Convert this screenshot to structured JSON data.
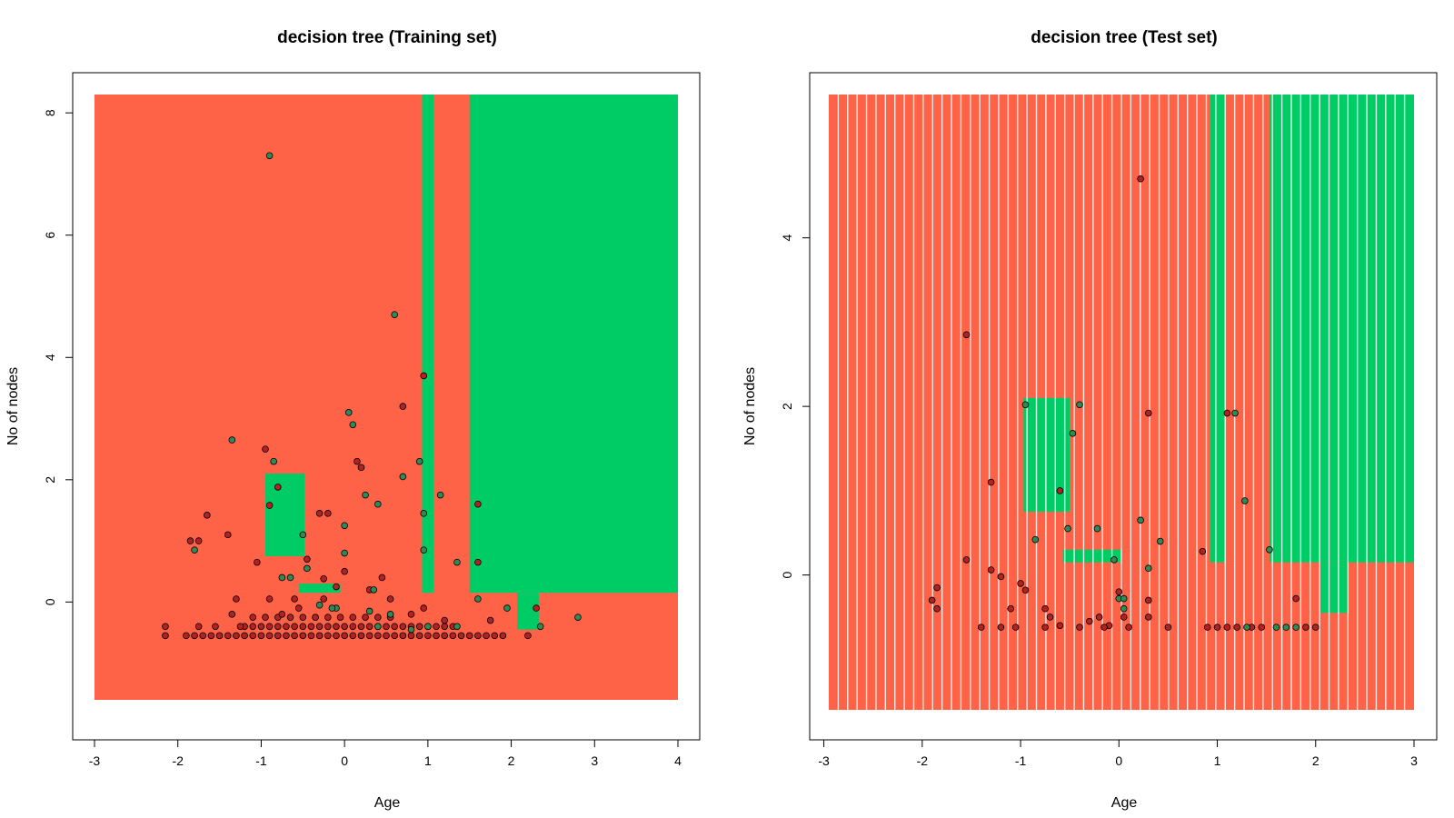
{
  "colors": {
    "class0_region": "#FF6347",
    "class1_region": "#00CC66",
    "class0_point": "#B22222",
    "class1_point": "#2E8B57",
    "point_stroke": "#000000",
    "background": "#FFFFFF"
  },
  "chart_data": [
    {
      "type": "scatter",
      "title": "decision tree (Training set)",
      "xlabel": "Age",
      "ylabel": "No of nodes",
      "xlim": [
        -3.0,
        4.0
      ],
      "ylim": [
        -1.6,
        8.3
      ],
      "xticks": [
        -3,
        -2,
        -1,
        0,
        1,
        2,
        3,
        4
      ],
      "yticks": [
        0,
        2,
        4,
        6,
        8
      ],
      "grid": false,
      "legend": "none",
      "regions": [
        {
          "class": 0,
          "x": [
            -3.0,
            4.0
          ],
          "y": [
            -1.6,
            8.3
          ]
        },
        {
          "class": 1,
          "x": [
            1.5,
            4.0
          ],
          "y": [
            0.15,
            8.3
          ]
        },
        {
          "class": 1,
          "x": [
            0.93,
            1.07
          ],
          "y": [
            0.15,
            8.3
          ]
        },
        {
          "class": 1,
          "x": [
            -0.95,
            -0.48
          ],
          "y": [
            0.75,
            2.1
          ]
        },
        {
          "class": 1,
          "x": [
            -0.55,
            -0.05
          ],
          "y": [
            0.15,
            0.3
          ]
        },
        {
          "class": 1,
          "x": [
            2.07,
            2.33
          ],
          "y": [
            -0.45,
            0.15
          ]
        }
      ],
      "series": [
        {
          "class": 0,
          "points": [
            [
              -2.15,
              -0.4
            ],
            [
              -2.15,
              -0.55
            ],
            [
              -1.85,
              1.0
            ],
            [
              -1.75,
              1.0
            ],
            [
              -1.65,
              1.42
            ],
            [
              -1.75,
              -0.4
            ],
            [
              -1.4,
              1.1
            ],
            [
              -1.35,
              -0.2
            ],
            [
              -1.3,
              0.05
            ],
            [
              -1.05,
              0.65
            ],
            [
              -0.95,
              2.5
            ],
            [
              -0.9,
              1.58
            ],
            [
              -0.8,
              1.88
            ],
            [
              -0.9,
              0.05
            ],
            [
              -0.75,
              -0.2
            ],
            [
              -0.6,
              0.05
            ],
            [
              -0.55,
              -0.1
            ],
            [
              -0.45,
              0.7
            ],
            [
              -0.3,
              1.45
            ],
            [
              -0.2,
              1.45
            ],
            [
              -0.25,
              0.38
            ],
            [
              -0.25,
              0.05
            ],
            [
              -0.1,
              0.25
            ],
            [
              0.0,
              0.5
            ],
            [
              0.15,
              2.3
            ],
            [
              0.2,
              2.2
            ],
            [
              0.3,
              0.2
            ],
            [
              0.55,
              0.05
            ],
            [
              0.7,
              3.2
            ],
            [
              0.8,
              -0.2
            ],
            [
              0.95,
              3.7
            ],
            [
              1.2,
              -0.3
            ],
            [
              1.6,
              1.6
            ],
            [
              1.6,
              0.65
            ],
            [
              1.75,
              -0.3
            ],
            [
              2.2,
              -0.55
            ],
            [
              2.3,
              -0.1
            ],
            [
              0.45,
              0.4
            ],
            [
              -0.35,
              -0.25
            ],
            [
              -1.55,
              -0.4
            ],
            [
              -1.25,
              -0.4
            ],
            [
              0.95,
              -0.1
            ]
          ]
        },
        {
          "class": 1,
          "points": [
            [
              -1.8,
              0.85
            ],
            [
              -1.35,
              2.65
            ],
            [
              -0.85,
              2.3
            ],
            [
              -0.75,
              0.4
            ],
            [
              -0.65,
              0.4
            ],
            [
              -0.5,
              1.1
            ],
            [
              -0.45,
              0.55
            ],
            [
              -0.3,
              -0.05
            ],
            [
              -0.1,
              -0.1
            ],
            [
              0.0,
              0.8
            ],
            [
              0.0,
              1.25
            ],
            [
              0.05,
              3.1
            ],
            [
              0.1,
              2.9
            ],
            [
              0.25,
              1.75
            ],
            [
              0.4,
              1.6
            ],
            [
              0.35,
              0.2
            ],
            [
              0.6,
              4.7
            ],
            [
              0.7,
              2.05
            ],
            [
              0.9,
              2.3
            ],
            [
              0.95,
              1.45
            ],
            [
              0.95,
              0.85
            ],
            [
              1.15,
              1.75
            ],
            [
              1.35,
              0.65
            ],
            [
              1.6,
              0.05
            ],
            [
              1.95,
              -0.1
            ],
            [
              2.35,
              -0.4
            ],
            [
              2.8,
              -0.25
            ],
            [
              -0.9,
              7.3
            ],
            [
              0.3,
              -0.15
            ],
            [
              0.4,
              -0.4
            ],
            [
              0.55,
              -0.2
            ],
            [
              0.8,
              -0.45
            ],
            [
              1.0,
              -0.4
            ],
            [
              1.35,
              -0.4
            ],
            [
              -0.15,
              -0.1
            ]
          ]
        }
      ],
      "dense_bottom_rows": [
        {
          "class": 0,
          "y": -0.55,
          "x_start": -1.9,
          "x_end": 1.9,
          "step": 0.1
        },
        {
          "class": 0,
          "y": -0.4,
          "x_start": -1.2,
          "x_end": 1.3,
          "step": 0.1
        },
        {
          "class": 0,
          "y": -0.25,
          "x_start": -1.1,
          "x_end": 0.6,
          "step": 0.15
        }
      ]
    },
    {
      "type": "scatter",
      "title": "decision tree (Test set)",
      "xlabel": "Age",
      "ylabel": "No of nodes",
      "xlim": [
        -2.95,
        3.0
      ],
      "ylim": [
        -1.6,
        5.7
      ],
      "xticks": [
        -3,
        -2,
        -1,
        0,
        1,
        2,
        3
      ],
      "yticks": [
        0,
        2,
        4
      ],
      "grid": false,
      "legend": "none",
      "regions": [
        {
          "class": 0,
          "x": [
            -2.95,
            3.0
          ],
          "y": [
            -1.6,
            5.7
          ]
        },
        {
          "class": 1,
          "x": [
            1.53,
            3.0
          ],
          "y": [
            0.15,
            5.7
          ]
        },
        {
          "class": 1,
          "x": [
            0.93,
            1.07
          ],
          "y": [
            0.15,
            5.7
          ]
        },
        {
          "class": 1,
          "x": [
            -0.97,
            -0.5
          ],
          "y": [
            0.75,
            2.1
          ]
        },
        {
          "class": 1,
          "x": [
            -0.57,
            0.02
          ],
          "y": [
            0.15,
            0.3
          ]
        },
        {
          "class": 1,
          "x": [
            2.05,
            2.33
          ],
          "y": [
            -0.45,
            0.15
          ]
        }
      ],
      "stripe_count": 62,
      "series": [
        {
          "class": 0,
          "points": [
            [
              -1.55,
              2.85
            ],
            [
              -1.3,
              1.1
            ],
            [
              -0.6,
              1.0
            ],
            [
              0.3,
              1.92
            ],
            [
              1.1,
              1.92
            ],
            [
              -1.55,
              0.18
            ],
            [
              -1.3,
              0.06
            ],
            [
              -1.9,
              -0.3
            ],
            [
              -1.85,
              -0.15
            ],
            [
              -1.85,
              -0.4
            ],
            [
              -1.2,
              -0.02
            ],
            [
              -1.1,
              -0.4
            ],
            [
              -1.0,
              -0.1
            ],
            [
              -0.95,
              -0.18
            ],
            [
              -0.75,
              -0.4
            ],
            [
              -0.6,
              -0.6
            ],
            [
              -0.3,
              -0.55
            ],
            [
              -0.2,
              -0.5
            ],
            [
              -0.1,
              -0.6
            ],
            [
              0.0,
              -0.2
            ],
            [
              0.05,
              -0.5
            ],
            [
              0.3,
              -0.3
            ],
            [
              0.3,
              -0.5
            ],
            [
              0.85,
              0.28
            ],
            [
              1.8,
              -0.28
            ],
            [
              -1.4,
              -0.62
            ],
            [
              -1.2,
              -0.62
            ],
            [
              -1.05,
              -0.62
            ],
            [
              -0.75,
              -0.62
            ],
            [
              -0.4,
              -0.62
            ],
            [
              -0.15,
              -0.62
            ],
            [
              0.1,
              -0.62
            ],
            [
              0.5,
              -0.62
            ],
            [
              0.9,
              -0.62
            ],
            [
              1.0,
              -0.62
            ],
            [
              1.1,
              -0.62
            ],
            [
              1.2,
              -0.62
            ],
            [
              1.35,
              -0.62
            ],
            [
              1.45,
              -0.62
            ],
            [
              1.9,
              -0.62
            ],
            [
              2.0,
              -0.62
            ],
            [
              0.22,
              4.7
            ],
            [
              -0.7,
              -0.5
            ]
          ]
        },
        {
          "class": 1,
          "points": [
            [
              -0.95,
              2.02
            ],
            [
              -0.4,
              2.02
            ],
            [
              -0.47,
              1.68
            ],
            [
              -0.52,
              0.55
            ],
            [
              -0.22,
              0.55
            ],
            [
              -0.85,
              0.42
            ],
            [
              -0.05,
              0.18
            ],
            [
              0.22,
              0.65
            ],
            [
              0.3,
              0.08
            ],
            [
              0.42,
              0.4
            ],
            [
              0.0,
              -0.28
            ],
            [
              0.05,
              -0.28
            ],
            [
              0.05,
              -0.4
            ],
            [
              1.18,
              1.92
            ],
            [
              1.28,
              0.88
            ],
            [
              1.53,
              0.3
            ],
            [
              1.7,
              -0.62
            ],
            [
              1.3,
              -0.62
            ],
            [
              1.6,
              -0.62
            ],
            [
              1.8,
              -0.62
            ]
          ]
        }
      ]
    }
  ]
}
